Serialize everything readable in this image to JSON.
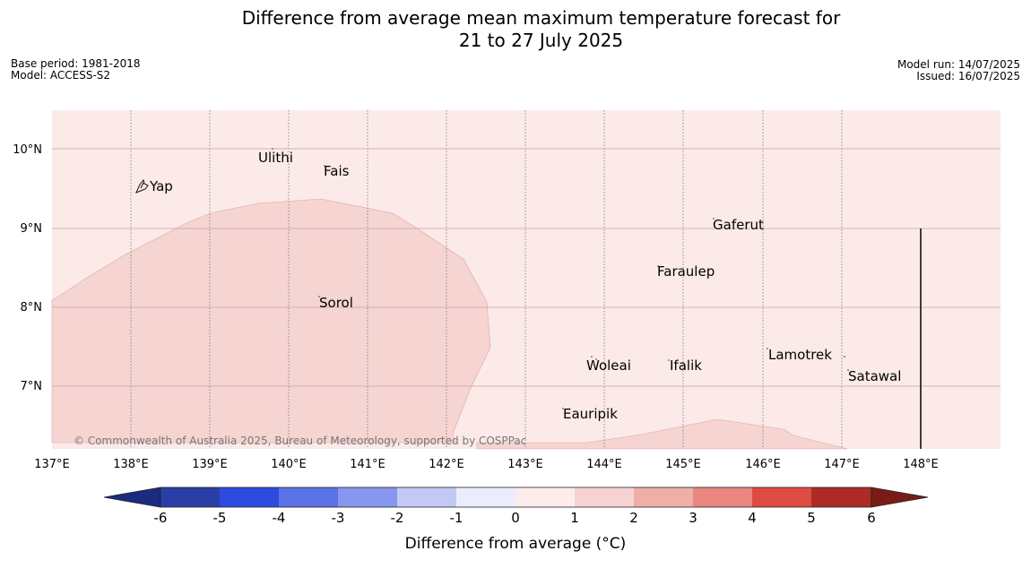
{
  "header": {
    "title_line1": "Difference from average mean maximum temperature forecast for",
    "title_line2": "21 to 27 July 2025",
    "base_period": "Base period: 1981-2018",
    "model": "Model: ACCESS-S2",
    "model_run": "Model run: 14/07/2025",
    "issued": "Issued: 16/07/2025"
  },
  "map": {
    "background_anomaly_class": "0 to 1",
    "background_color": "#fbeae8",
    "region_color": "#f5d4d2",
    "lon_ticks": [
      "137°E",
      "138°E",
      "139°E",
      "140°E",
      "141°E",
      "142°E",
      "143°E",
      "144°E",
      "145°E",
      "146°E",
      "147°E",
      "148°E"
    ],
    "lat_ticks": [
      "10°N",
      "9°N",
      "8°N",
      "7°N"
    ],
    "places": [
      {
        "name": "Yap"
      },
      {
        "name": "Ulithi"
      },
      {
        "name": "Fais"
      },
      {
        "name": "Gaferut"
      },
      {
        "name": "Faraulep"
      },
      {
        "name": "Sorol"
      },
      {
        "name": "Woleai"
      },
      {
        "name": "Ifalik"
      },
      {
        "name": "Lamotrek"
      },
      {
        "name": "Satawal"
      },
      {
        "name": "Eauripik"
      }
    ],
    "credit": "© Commonwealth of Australia 2025, Bureau of Meteorology, supported by COSPPac"
  },
  "colorbar": {
    "labels": [
      "-6",
      "-5",
      "-4",
      "-3",
      "-2",
      "-1",
      "0",
      "1",
      "2",
      "3",
      "4",
      "5",
      "6"
    ],
    "colors": [
      "#2a3fa6",
      "#2e4be0",
      "#5a73e6",
      "#8796ee",
      "#c3c9f6",
      "#ecedfc",
      "#fdecec",
      "#f6d3d1",
      "#efaea8",
      "#ea8680",
      "#de4b40",
      "#ad2b25"
    ],
    "low_extend_color": "#1b2b80",
    "high_extend_color": "#7a1c16",
    "title": "Difference from average (°C)"
  }
}
